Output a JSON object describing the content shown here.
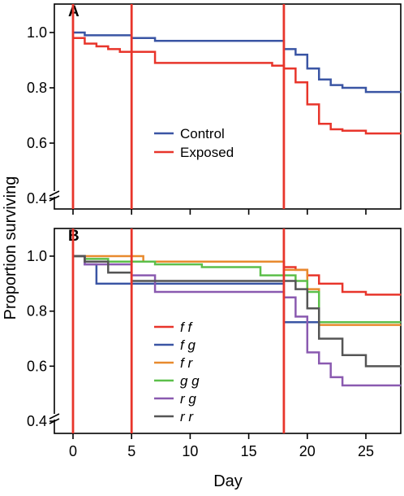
{
  "chart_data": [
    {
      "type": "line",
      "step": true,
      "panel_label": "A",
      "xlim": [
        0,
        28
      ],
      "ylim": [
        0.4,
        1.0
      ],
      "y_ticks": [
        "0.4",
        "0.6",
        "0.8",
        "1.0"
      ],
      "y_axis_break": true,
      "x_tick_labels_shown": false,
      "event_lines": [
        0,
        5,
        18
      ],
      "event_line_color": "#e8352b",
      "legend_position": "center",
      "series": [
        {
          "name": "Control",
          "color": "#3a55a4",
          "x": [
            0,
            1,
            5,
            7,
            18,
            19,
            20,
            21,
            22,
            23,
            25,
            28
          ],
          "y": [
            1.0,
            0.99,
            0.98,
            0.97,
            0.94,
            0.92,
            0.87,
            0.83,
            0.81,
            0.8,
            0.785,
            0.785
          ]
        },
        {
          "name": "Exposed",
          "color": "#e8352b",
          "x": [
            0,
            1,
            2,
            3,
            4,
            7,
            17,
            18,
            19,
            20,
            21,
            22,
            23,
            25,
            28
          ],
          "y": [
            0.98,
            0.96,
            0.95,
            0.94,
            0.93,
            0.89,
            0.88,
            0.87,
            0.82,
            0.74,
            0.67,
            0.65,
            0.645,
            0.635,
            0.635
          ]
        }
      ]
    },
    {
      "type": "line",
      "step": true,
      "panel_label": "B",
      "xlim": [
        0,
        28
      ],
      "x_ticks": [
        0,
        5,
        10,
        15,
        20,
        25
      ],
      "x_tick_labels": [
        "0",
        "5",
        "10",
        "15",
        "20",
        "25"
      ],
      "xlabel": "Day",
      "ylim": [
        0.4,
        1.0
      ],
      "y_ticks": [
        "0.4",
        "0.6",
        "0.8",
        "1.0"
      ],
      "y_axis_break": true,
      "event_lines": [
        0,
        5,
        18
      ],
      "event_line_color": "#e8352b",
      "legend_position": "center",
      "series": [
        {
          "name": "f f",
          "color": "#e8352b",
          "x": [
            0,
            1,
            18,
            19,
            20,
            21,
            23,
            25,
            28
          ],
          "y": [
            1.0,
            0.98,
            0.96,
            0.95,
            0.93,
            0.9,
            0.87,
            0.86,
            0.86
          ]
        },
        {
          "name": "f g",
          "color": "#3a55a4",
          "x": [
            0,
            1,
            2,
            18,
            28
          ],
          "y": [
            1.0,
            0.97,
            0.9,
            0.76,
            0.76
          ]
        },
        {
          "name": "f r",
          "color": "#e88a2e",
          "x": [
            0,
            6,
            18,
            20,
            21,
            28
          ],
          "y": [
            1.0,
            0.98,
            0.95,
            0.88,
            0.75,
            0.75
          ]
        },
        {
          "name": "g g",
          "color": "#5cbf4a",
          "x": [
            0,
            1,
            3,
            7,
            11,
            16,
            19,
            20,
            21,
            28
          ],
          "y": [
            1.0,
            0.99,
            0.98,
            0.97,
            0.96,
            0.93,
            0.91,
            0.87,
            0.76,
            0.76
          ]
        },
        {
          "name": "r g",
          "color": "#8a5ab0",
          "x": [
            0,
            1,
            5,
            7,
            18,
            19,
            20,
            21,
            22,
            23,
            28
          ],
          "y": [
            1.0,
            0.97,
            0.93,
            0.87,
            0.85,
            0.78,
            0.65,
            0.61,
            0.56,
            0.53,
            0.53
          ]
        },
        {
          "name": "r r",
          "color": "#555555",
          "x": [
            0,
            1,
            3,
            5,
            19,
            20,
            21,
            23,
            25,
            28
          ],
          "y": [
            1.0,
            0.98,
            0.94,
            0.91,
            0.88,
            0.81,
            0.7,
            0.64,
            0.6,
            0.6
          ]
        }
      ]
    }
  ],
  "ylabel": "Proportion surviving"
}
